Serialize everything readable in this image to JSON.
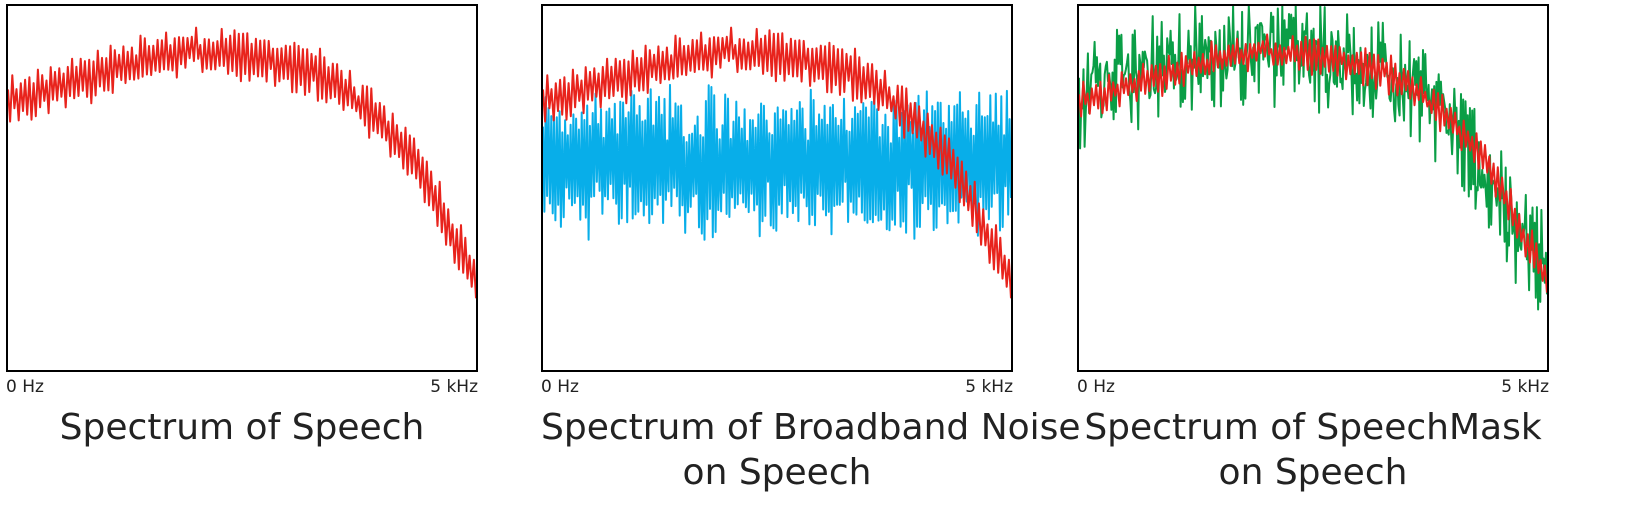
{
  "colors": {
    "speech": "#e8231c",
    "broadband_noise": "#08aee9",
    "speechmask": "#0a9e46",
    "frame": "#000000",
    "text": "#222222"
  },
  "panels": [
    {
      "id": "speech",
      "x_min_label": "0 Hz",
      "x_max_label": "5 kHz",
      "title_lines": [
        "Spectrum of Speech"
      ]
    },
    {
      "id": "broadband",
      "x_min_label": "0 Hz",
      "x_max_label": "5 kHz",
      "title_lines": [
        "Spectrum of Broadband Noise",
        "on Speech"
      ]
    },
    {
      "id": "speechmask",
      "x_min_label": "0 Hz",
      "x_max_label": "5 kHz",
      "title_lines": [
        "Spectrum of SpeechMask",
        "on Speech"
      ]
    }
  ],
  "chart_data": [
    {
      "type": "line",
      "title": "Spectrum of Speech",
      "xlabel": "",
      "ylabel": "",
      "x_ticks": [
        "0 Hz",
        "5 kHz"
      ],
      "xlim": [
        0,
        5
      ],
      "ylim": [
        0,
        1
      ],
      "grid": false,
      "series": [
        {
          "key": "speech",
          "color": "#e8231c",
          "envelope": [
            [
              0,
              0.74
            ],
            [
              0.5,
              0.78
            ],
            [
              1.0,
              0.82
            ],
            [
              1.5,
              0.86
            ],
            [
              2.0,
              0.88
            ],
            [
              2.5,
              0.86
            ],
            [
              3.0,
              0.84
            ],
            [
              3.5,
              0.79
            ],
            [
              4.0,
              0.68
            ],
            [
              4.4,
              0.55
            ],
            [
              4.7,
              0.4
            ],
            [
              5.0,
              0.26
            ]
          ],
          "ripple": 0.06,
          "jitter": 0.02,
          "points": 220,
          "seed": 11
        }
      ]
    },
    {
      "type": "line",
      "title": "Spectrum of Broadband Noise on Speech",
      "xlabel": "",
      "ylabel": "",
      "x_ticks": [
        "0 Hz",
        "5 kHz"
      ],
      "xlim": [
        0,
        5
      ],
      "ylim": [
        0,
        1
      ],
      "grid": false,
      "series": [
        {
          "key": "broadband_noise",
          "color": "#08aee9",
          "envelope": [
            [
              0,
              0.57
            ],
            [
              5.0,
              0.57
            ]
          ],
          "ripple": 0.17,
          "jitter": 0.05,
          "points": 340,
          "seed": 23
        },
        {
          "key": "speech",
          "color": "#e8231c",
          "envelope": [
            [
              0,
              0.74
            ],
            [
              0.5,
              0.78
            ],
            [
              1.0,
              0.82
            ],
            [
              1.5,
              0.86
            ],
            [
              2.0,
              0.88
            ],
            [
              2.5,
              0.86
            ],
            [
              3.0,
              0.84
            ],
            [
              3.5,
              0.79
            ],
            [
              4.0,
              0.68
            ],
            [
              4.4,
              0.55
            ],
            [
              4.7,
              0.4
            ],
            [
              5.0,
              0.26
            ]
          ],
          "ripple": 0.06,
          "jitter": 0.02,
          "points": 220,
          "seed": 11
        }
      ]
    },
    {
      "type": "line",
      "title": "Spectrum of SpeechMask on Speech",
      "xlabel": "",
      "ylabel": "",
      "x_ticks": [
        "0 Hz",
        "5 kHz"
      ],
      "xlim": [
        0,
        5
      ],
      "ylim": [
        0,
        1
      ],
      "grid": false,
      "series": [
        {
          "key": "speechmask",
          "color": "#0a9e46",
          "envelope": [
            [
              0,
              0.74
            ],
            [
              0.5,
              0.8
            ],
            [
              1.0,
              0.84
            ],
            [
              1.5,
              0.87
            ],
            [
              2.0,
              0.88
            ],
            [
              2.5,
              0.86
            ],
            [
              3.0,
              0.84
            ],
            [
              3.5,
              0.78
            ],
            [
              4.0,
              0.66
            ],
            [
              4.4,
              0.52
            ],
            [
              4.7,
              0.38
            ],
            [
              5.0,
              0.28
            ]
          ],
          "ripple": 0.05,
          "jitter": 0.11,
          "points": 420,
          "seed": 37
        },
        {
          "key": "speech",
          "color": "#e8231c",
          "envelope": [
            [
              0,
              0.74
            ],
            [
              0.5,
              0.78
            ],
            [
              1.0,
              0.82
            ],
            [
              1.5,
              0.86
            ],
            [
              2.0,
              0.88
            ],
            [
              2.5,
              0.86
            ],
            [
              3.0,
              0.84
            ],
            [
              3.5,
              0.79
            ],
            [
              4.0,
              0.68
            ],
            [
              4.4,
              0.55
            ],
            [
              4.7,
              0.4
            ],
            [
              5.0,
              0.26
            ]
          ],
          "ripple": 0.04,
          "jitter": 0.02,
          "points": 220,
          "seed": 11
        }
      ]
    }
  ]
}
